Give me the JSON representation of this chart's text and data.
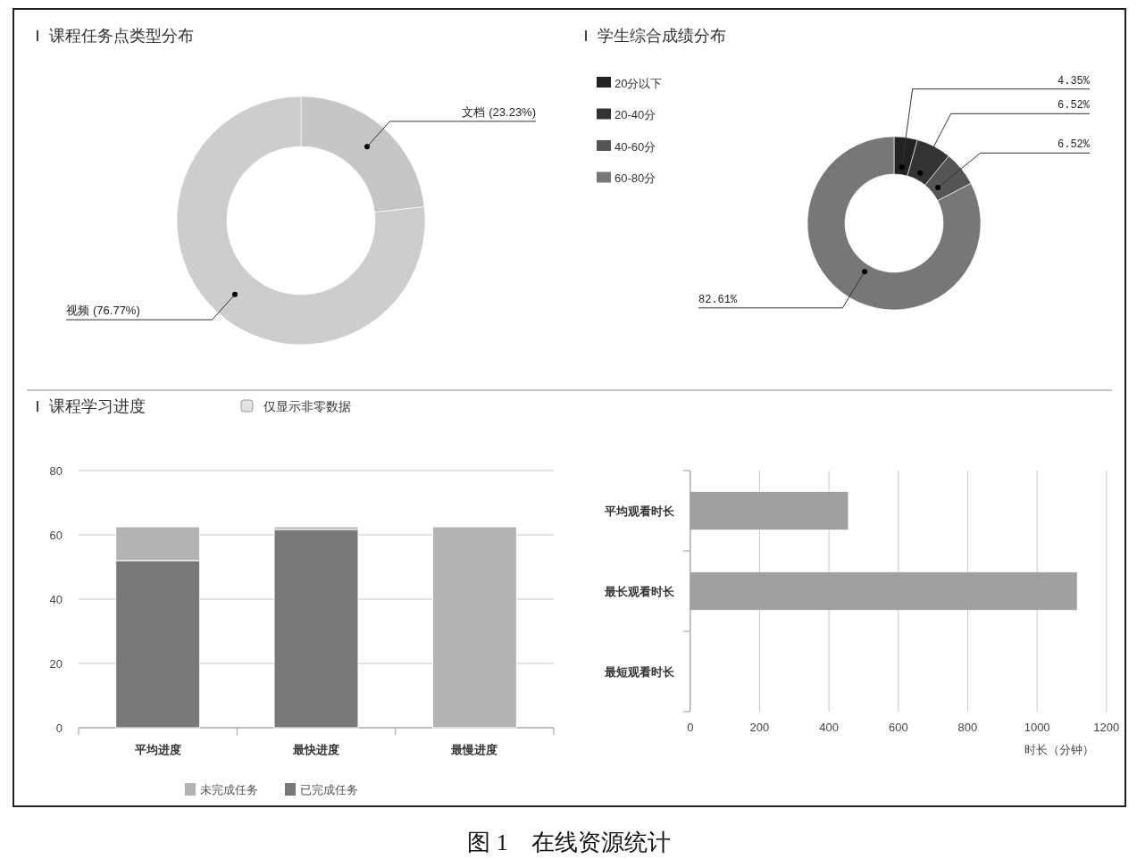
{
  "chart_data": [
    {
      "type": "donut",
      "title": "课程任务点类型分布",
      "categories": [
        "文档",
        "视频"
      ],
      "values": [
        23.23,
        76.77
      ],
      "colors": [
        "#c6c6c6",
        "#cdcdcd"
      ],
      "value_labels": [
        "(23.23%)",
        "(76.77%)"
      ]
    },
    {
      "type": "donut",
      "title": "学生综合成绩分布",
      "categories": [
        "20分以下",
        "20-40分",
        "40-60分",
        "60-80分"
      ],
      "values": [
        4.35,
        6.52,
        6.52,
        82.61
      ],
      "colors": [
        "#222222",
        "#333333",
        "#555555",
        "#777777"
      ],
      "value_labels": [
        "4.35%",
        "6.52%",
        "6.52%",
        "82.61%"
      ],
      "legend": "top left"
    },
    {
      "type": "bar",
      "title": "课程学习进度",
      "categories": [
        "平均进度",
        "最快进度",
        "最慢进度"
      ],
      "stacked": true,
      "series": [
        {
          "name": "已完成任务",
          "color": "#787878",
          "values": [
            52,
            61.7,
            0
          ]
        },
        {
          "name": "未完成任务",
          "color": "#b3b3b3",
          "values": [
            10.5,
            0.8,
            62.5
          ]
        }
      ],
      "ylim": [
        0,
        80
      ],
      "yticks": [
        0,
        20,
        40,
        60,
        80
      ],
      "grid": "y",
      "legend": "bottom",
      "annotations": [
        "仅显示非零数据"
      ]
    },
    {
      "type": "bar",
      "orientation": "horizontal",
      "categories": [
        "平均观看时长",
        "最长观看时长",
        "最短观看时长"
      ],
      "series": [
        {
          "color": "#a0a0a0",
          "values": [
            455,
            1115,
            0
          ]
        }
      ],
      "xlabel": "时长（分钟）",
      "xlim": [
        0,
        1200
      ],
      "xticks": [
        0,
        200,
        400,
        600,
        800,
        1000,
        1200
      ],
      "grid": "x",
      "annotations": [
        "图 1　在线资源统计"
      ]
    }
  ]
}
